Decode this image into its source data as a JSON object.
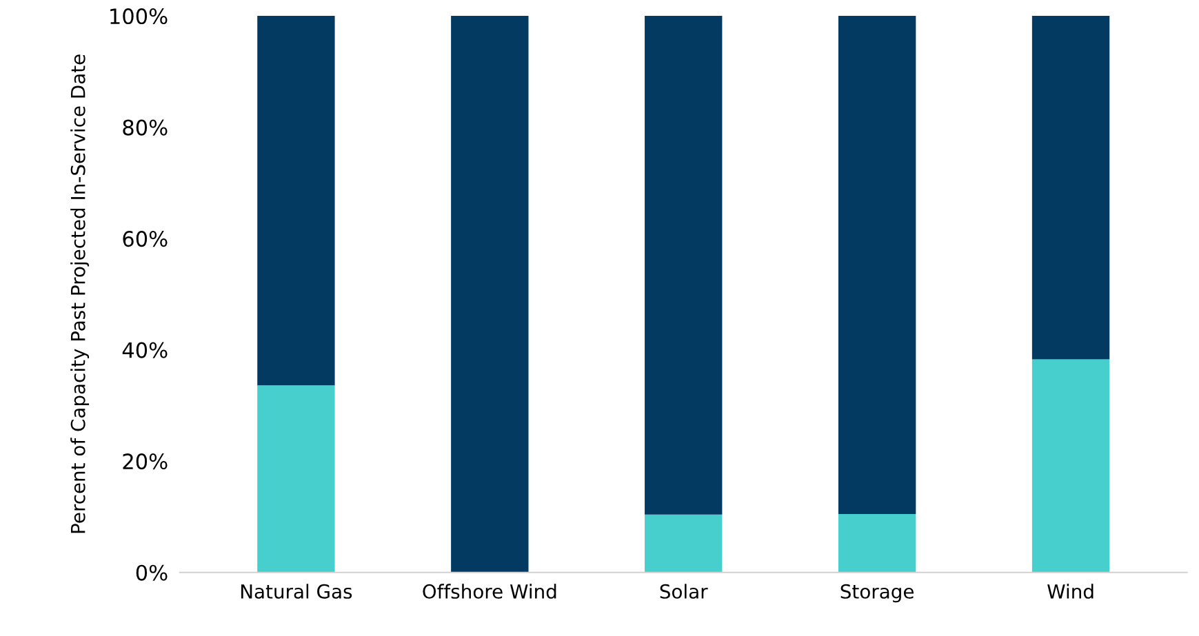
{
  "chart_data": {
    "type": "bar",
    "stacked": true,
    "ylabel": "Percent of Capacity Past Projected In-Service Date",
    "categories": [
      "Natural Gas",
      "Offshore Wind",
      "Solar",
      "Storage",
      "Wind"
    ],
    "series": [
      {
        "color": "#46cfcd",
        "values": [
          33.6,
          0,
          10.4,
          10.5,
          38.3
        ]
      },
      {
        "color": "#033a61",
        "values": [
          66.4,
          100,
          89.6,
          89.5,
          61.7
        ]
      }
    ],
    "ylim": [
      0,
      100
    ],
    "yticks": [
      {
        "value": 0,
        "label": "0%"
      },
      {
        "value": 20,
        "label": "20%"
      },
      {
        "value": 40,
        "label": "40%"
      },
      {
        "value": 60,
        "label": "60%"
      },
      {
        "value": 80,
        "label": "80%"
      },
      {
        "value": 100,
        "label": "100%"
      }
    ],
    "grid": false,
    "legend": false
  }
}
